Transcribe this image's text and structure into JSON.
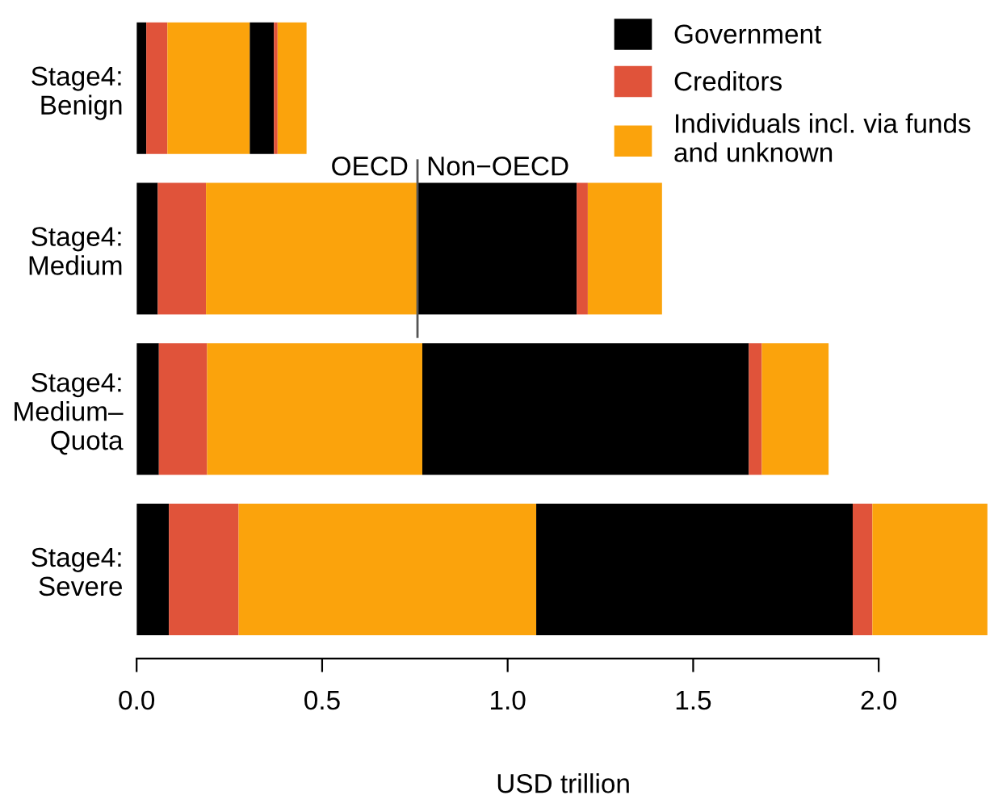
{
  "chart_data": {
    "type": "bar",
    "orientation": "horizontal",
    "stacked": true,
    "xlabel": "USD trillion",
    "categories": [
      "Stage4:\nBenign",
      "Stage4:\nMedium",
      "Stage4:\nMedium–\nQuota",
      "Stage4:\nSevere"
    ],
    "series": [
      {
        "name": "Government",
        "color": "#000000",
        "values": [
          0.026,
          0.057,
          0.06,
          0.087
        ]
      },
      {
        "name": "Creditors",
        "color": "#e0533a",
        "values": [
          0.057,
          0.13,
          0.13,
          0.188
        ]
      },
      {
        "name": "Individuals incl. via funds\nand unknown",
        "color": "#fba30c",
        "values": [
          0.222,
          0.571,
          0.58,
          0.802
        ]
      },
      {
        "color": "#000000",
        "values": [
          0.065,
          0.428,
          0.88,
          0.853
        ]
      },
      {
        "color": "#e0533a",
        "values": [
          0.01,
          0.03,
          0.035,
          0.053
        ]
      },
      {
        "color": "#fba30c",
        "values": [
          0.078,
          0.2,
          0.18,
          0.31
        ]
      }
    ],
    "xlim": [
      0,
      2.3
    ],
    "xticks": [
      {
        "value": 0,
        "label": "0.0"
      },
      {
        "value": 0.5,
        "label": "0.5"
      },
      {
        "value": 1,
        "label": "1.0"
      },
      {
        "value": 1.5,
        "label": "1.5"
      },
      {
        "value": 2,
        "label": "2.0"
      }
    ],
    "ref_lines": [
      {
        "axis": "x",
        "value": 0.757,
        "color": "#555555"
      }
    ],
    "annotations": [
      {
        "text": "OECD",
        "x": 0.757,
        "y": "Stage4:\nMedium"
      },
      {
        "text": "Non−OECD",
        "x": 0.757,
        "y": "Stage4:\nMedium"
      }
    ],
    "legend": "top right",
    "grid": false
  }
}
